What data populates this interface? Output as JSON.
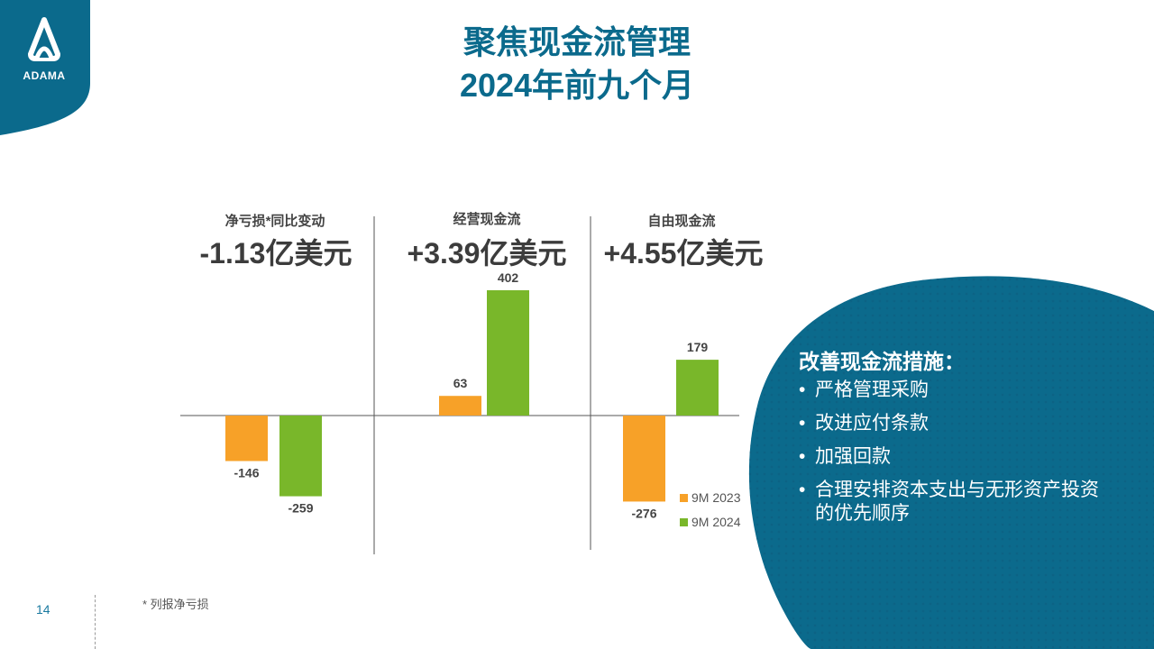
{
  "logo": {
    "text": "ADAMA"
  },
  "title": {
    "line1": "聚焦现金流管理",
    "line2": "2024年前九个月"
  },
  "panels": [
    {
      "label": "净亏损*同比变动",
      "value": "-1.13亿美元"
    },
    {
      "label": "经营现金流",
      "value": "+3.39亿美元"
    },
    {
      "label": "自由现金流",
      "value": "+4.55亿美元"
    }
  ],
  "measures": {
    "title": "改善现金流措施：",
    "items": [
      "严格管理采购",
      "改进应付条款",
      "加强回款",
      "合理安排资本支出与无形资产投资的优先顺序"
    ]
  },
  "footnote": "* 列报净亏损",
  "page_number": "14",
  "colors": {
    "brand_blue": "#0b6a8c",
    "series_2023": "#f7a128",
    "series_2024": "#79b72a",
    "text_dark": "#3c3c3c"
  },
  "chart_data": {
    "type": "bar",
    "categories": [
      "净亏损*同比变动",
      "经营现金流",
      "自由现金流"
    ],
    "series": [
      {
        "name": "9M 2023",
        "values": [
          -146,
          63,
          -276
        ],
        "labels": [
          "-146",
          "63",
          "-276"
        ]
      },
      {
        "name": "9M 2024",
        "values": [
          -259,
          402,
          179
        ],
        "labels": [
          "-259",
          "402",
          "179"
        ]
      }
    ],
    "legend": "bottom-right",
    "grid": false,
    "ylim": [
      -300,
      420
    ]
  }
}
